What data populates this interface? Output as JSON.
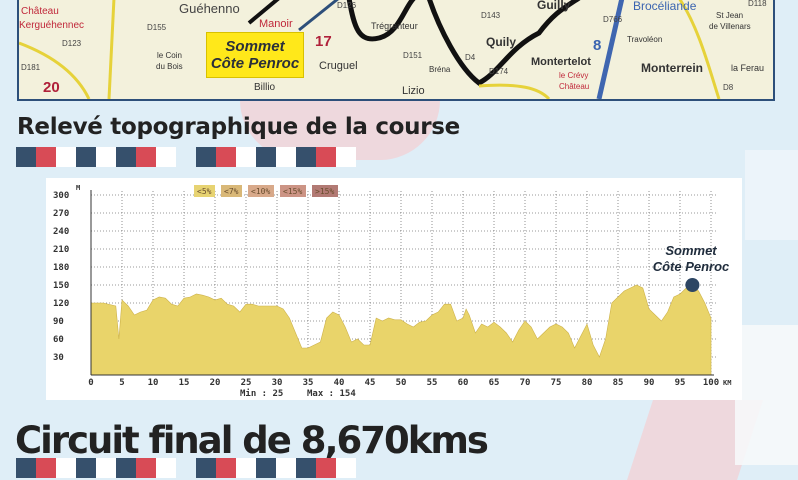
{
  "map": {
    "sommet_label_line1": "Sommet",
    "sommet_label_line2": "Côte Penroc",
    "places": [
      "Château",
      "Kerguéhennec",
      "Guéhenno",
      "Manoir",
      "le Coin",
      "du Bois",
      "Billio",
      "Cruguel",
      "Trégranteur",
      "Bréna",
      "Quily",
      "Guilly",
      "Montertelot",
      "le Crévy",
      "Château",
      "Travoléon",
      "Brocéliande",
      "St Jean",
      "de Villenars",
      "Monterrein",
      "la Ferau",
      "Lizio"
    ],
    "roads": [
      "D123",
      "D155",
      "D181",
      "D126",
      "D143",
      "D151",
      "D4",
      "D174",
      "D766",
      "D118",
      "D8"
    ],
    "numbers": [
      "20",
      "17",
      "8"
    ]
  },
  "section_topo": {
    "title": "Relevé topographique de la course"
  },
  "section_circuit": {
    "title": "Circuit final de 8,670kms"
  },
  "colors": {
    "flag_blue": "#36506c",
    "flag_red": "#d84b56",
    "profile_fill": "#e9d46a",
    "marker": "#2d4664"
  },
  "chart_data": {
    "type": "area",
    "xlabel": "KM",
    "ylabel": "M",
    "xlim": [
      0,
      100
    ],
    "ylim": [
      0,
      300
    ],
    "grid": true,
    "x_ticks": [
      "0",
      "5",
      "10",
      "15",
      "20",
      "25",
      "30",
      "35",
      "40",
      "45",
      "50",
      "55",
      "60",
      "65",
      "70",
      "75",
      "80",
      "85",
      "90",
      "95",
      "100"
    ],
    "y_ticks": [
      "300",
      "270",
      "240",
      "210",
      "180",
      "150",
      "120",
      "90",
      "60",
      "30"
    ],
    "legend": [
      {
        "label": "<5%",
        "color": "#e7d372"
      },
      {
        "label": "<7%",
        "color": "#d9b878"
      },
      {
        "label": "<10%",
        "color": "#d8a98a"
      },
      {
        "label": "<15%",
        "color": "#cc9485"
      },
      {
        "label": ">15%",
        "color": "#b27a74"
      }
    ],
    "legend_position": "top-center",
    "min_label": "Min : 25",
    "max_label": "Max : 154",
    "annotation": {
      "line1": "Sommet",
      "line2": "Côte Penroc",
      "x": 97,
      "y": 150
    },
    "x": [
      0,
      2,
      4,
      4.5,
      5,
      6,
      7,
      8,
      9,
      10,
      11,
      12,
      13,
      14,
      15,
      16,
      17,
      18,
      19,
      20,
      21,
      22,
      23,
      24,
      25,
      26,
      27,
      28,
      29,
      30,
      31,
      32,
      33,
      34,
      35,
      36,
      37,
      38,
      39,
      40,
      41,
      42,
      43,
      44,
      45,
      46,
      47,
      48,
      49,
      50,
      51,
      52,
      53,
      54,
      55,
      56,
      57,
      58,
      59,
      60,
      60.5,
      61,
      62,
      63,
      64,
      65,
      66,
      67,
      68,
      69,
      70,
      71,
      72,
      73,
      74,
      75,
      76,
      77,
      78,
      79,
      80,
      81,
      82,
      83,
      84,
      85,
      86,
      87,
      88,
      89,
      90,
      91,
      92,
      93,
      94,
      95,
      96,
      97,
      98,
      99,
      100
    ],
    "y": [
      120,
      120,
      115,
      60,
      125,
      115,
      100,
      105,
      108,
      125,
      130,
      128,
      118,
      115,
      128,
      130,
      135,
      133,
      130,
      125,
      128,
      118,
      115,
      105,
      118,
      118,
      115,
      115,
      115,
      115,
      110,
      95,
      70,
      45,
      45,
      50,
      55,
      95,
      105,
      100,
      80,
      55,
      60,
      50,
      50,
      95,
      90,
      95,
      92,
      92,
      85,
      80,
      88,
      90,
      100,
      105,
      118,
      118,
      90,
      95,
      110,
      100,
      70,
      85,
      80,
      88,
      80,
      70,
      55,
      75,
      90,
      80,
      60,
      70,
      80,
      85,
      80,
      70,
      45,
      65,
      85,
      50,
      30,
      60,
      120,
      130,
      140,
      145,
      150,
      145,
      110,
      100,
      90,
      105,
      130,
      135,
      145,
      150,
      140,
      120,
      95
    ]
  }
}
